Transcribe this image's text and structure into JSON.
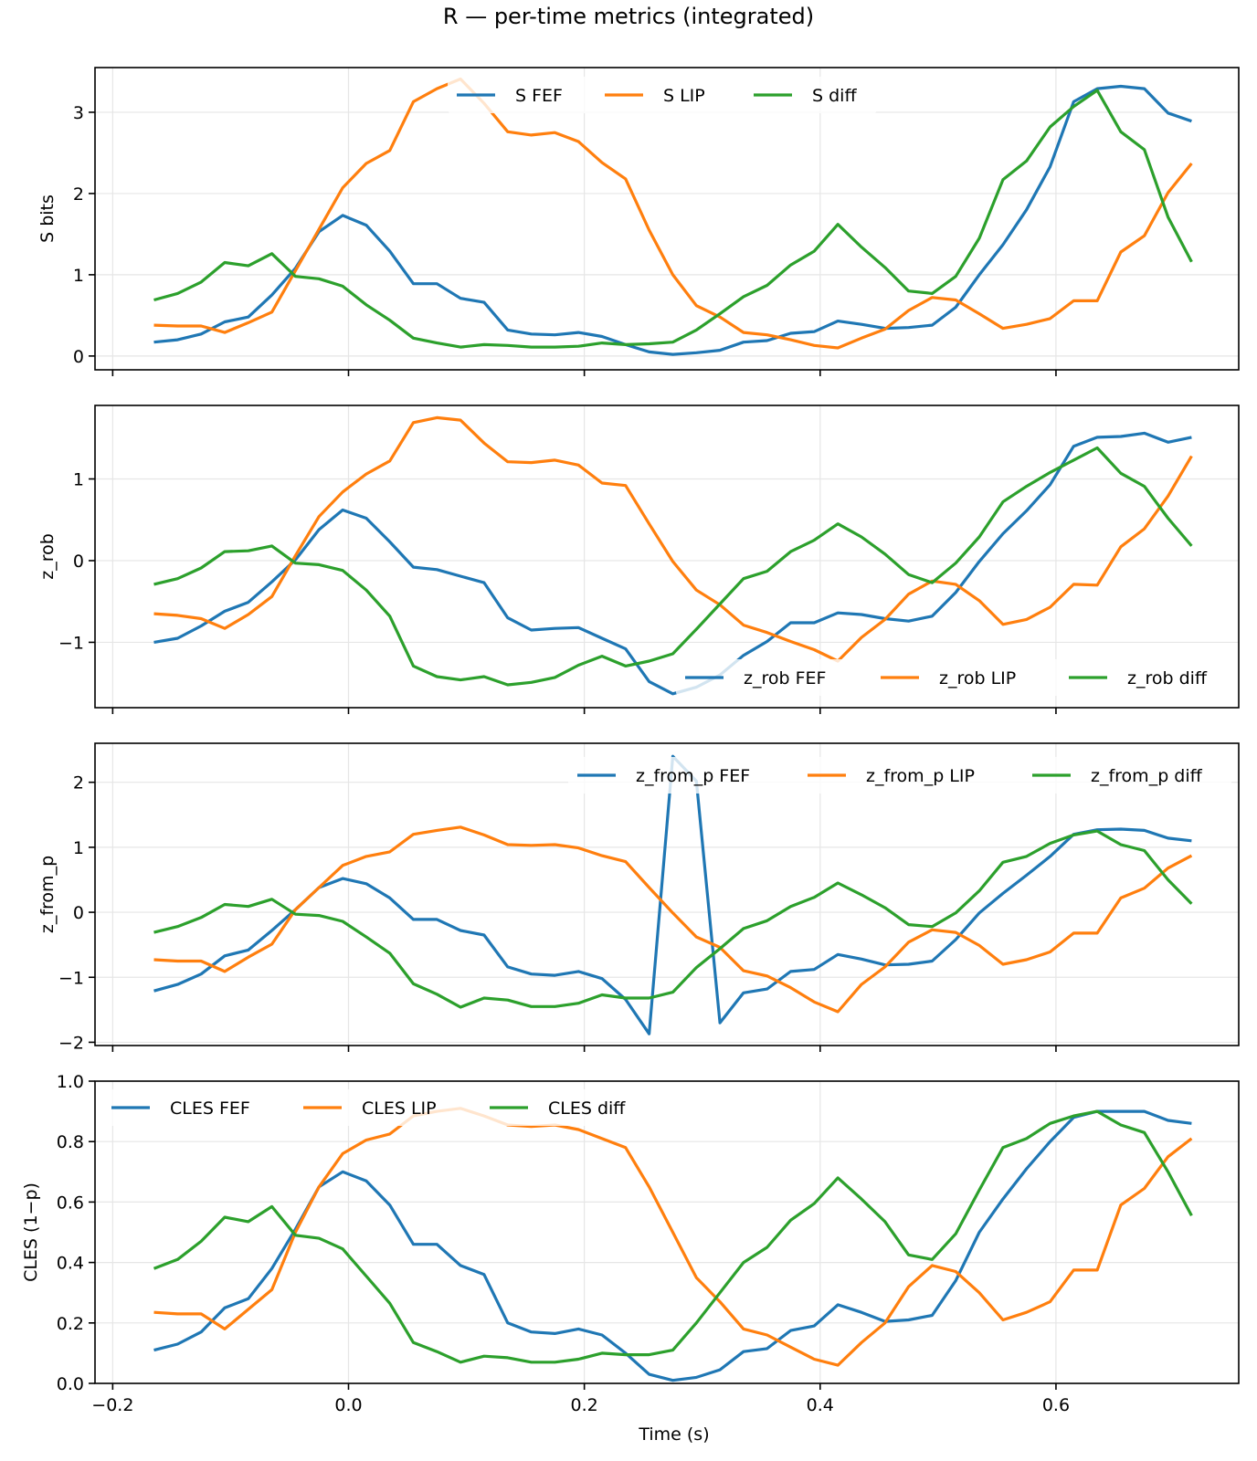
{
  "figure_title": "R — per-time metrics (integrated)",
  "colors": {
    "fef": "#1f77b4",
    "lip": "#ff7f0e",
    "diff": "#2ca02c"
  },
  "shared_x": [
    -0.165,
    -0.145,
    -0.125,
    -0.105,
    -0.085,
    -0.065,
    -0.045,
    -0.025,
    -0.005,
    0.015,
    0.035,
    0.055,
    0.075,
    0.095,
    0.115,
    0.135,
    0.155,
    0.175,
    0.195,
    0.215,
    0.235,
    0.255,
    0.275,
    0.295,
    0.315,
    0.335,
    0.355,
    0.375,
    0.395,
    0.415,
    0.435,
    0.455,
    0.475,
    0.495,
    0.515,
    0.535,
    0.555,
    0.575,
    0.595,
    0.615,
    0.635,
    0.655,
    0.675,
    0.695,
    0.715
  ],
  "chart_data": [
    {
      "type": "line",
      "ylabel": "S bits",
      "xlabel": "",
      "xlim": [
        -0.215,
        0.755
      ],
      "ylim": [
        -0.17,
        3.55
      ],
      "yticks": [
        0,
        1,
        2,
        3
      ],
      "ytick_labels": [
        "0",
        "1",
        "2",
        "3"
      ],
      "xticks": [
        -0.2,
        0.0,
        0.2,
        0.4,
        0.6
      ],
      "xtick_labels": [],
      "grid": true,
      "legend": {
        "placement": "upper center",
        "ncol": 3
      },
      "series": [
        {
          "name": "S FEF",
          "color": "#1f77b4",
          "values": [
            0.17,
            0.2,
            0.27,
            0.42,
            0.48,
            0.75,
            1.08,
            1.53,
            1.73,
            1.61,
            1.29,
            0.89,
            0.89,
            0.71,
            0.66,
            0.32,
            0.27,
            0.26,
            0.29,
            0.24,
            0.14,
            0.05,
            0.02,
            0.04,
            0.07,
            0.17,
            0.19,
            0.28,
            0.3,
            0.43,
            0.39,
            0.34,
            0.35,
            0.38,
            0.6,
            1.0,
            1.37,
            1.8,
            2.33,
            3.13,
            3.29,
            3.32,
            3.29,
            2.99,
            2.89
          ]
        },
        {
          "name": "S LIP",
          "color": "#ff7f0e",
          "values": [
            0.38,
            0.37,
            0.37,
            0.29,
            0.41,
            0.54,
            1.05,
            1.56,
            2.07,
            2.37,
            2.53,
            3.13,
            3.29,
            3.41,
            3.11,
            2.76,
            2.72,
            2.75,
            2.64,
            2.38,
            2.18,
            1.55,
            1.0,
            0.62,
            0.48,
            0.29,
            0.26,
            0.2,
            0.13,
            0.1,
            0.22,
            0.33,
            0.56,
            0.72,
            0.69,
            0.52,
            0.34,
            0.39,
            0.46,
            0.68,
            0.68,
            1.28,
            1.48,
            2.01,
            2.37
          ]
        },
        {
          "name": "S diff",
          "color": "#2ca02c",
          "values": [
            0.69,
            0.77,
            0.91,
            1.15,
            1.11,
            1.26,
            0.98,
            0.95,
            0.86,
            0.63,
            0.44,
            0.22,
            0.16,
            0.11,
            0.14,
            0.13,
            0.11,
            0.11,
            0.12,
            0.16,
            0.14,
            0.15,
            0.17,
            0.32,
            0.52,
            0.73,
            0.87,
            1.12,
            1.29,
            1.62,
            1.34,
            1.09,
            0.8,
            0.77,
            0.98,
            1.45,
            2.17,
            2.4,
            2.82,
            3.07,
            3.27,
            2.76,
            2.54,
            1.71,
            1.16
          ]
        }
      ]
    },
    {
      "type": "line",
      "ylabel": "z_rob",
      "xlabel": "",
      "xlim": [
        -0.215,
        0.755
      ],
      "ylim": [
        -1.8,
        1.9
      ],
      "yticks": [
        -1,
        0,
        1
      ],
      "ytick_labels": [
        "−1",
        "0",
        "1"
      ],
      "xticks": [
        -0.2,
        0.0,
        0.2,
        0.4,
        0.6
      ],
      "xtick_labels": [],
      "grid": true,
      "legend": {
        "placement": "lower right",
        "ncol": 3
      },
      "series": [
        {
          "name": "z_rob FEF",
          "color": "#1f77b4",
          "values": [
            -1.0,
            -0.95,
            -0.8,
            -0.62,
            -0.51,
            -0.26,
            0.01,
            0.38,
            0.62,
            0.52,
            0.23,
            -0.08,
            -0.11,
            -0.19,
            -0.27,
            -0.7,
            -0.85,
            -0.83,
            -0.82,
            -0.95,
            -1.08,
            -1.48,
            -1.63,
            -1.55,
            -1.4,
            -1.16,
            -0.99,
            -0.76,
            -0.76,
            -0.64,
            -0.66,
            -0.71,
            -0.74,
            -0.68,
            -0.39,
            -0.01,
            0.33,
            0.61,
            0.93,
            1.4,
            1.51,
            1.52,
            1.56,
            1.45,
            1.51
          ]
        },
        {
          "name": "z_rob LIP",
          "color": "#ff7f0e",
          "values": [
            -0.65,
            -0.67,
            -0.71,
            -0.83,
            -0.66,
            -0.44,
            0.06,
            0.54,
            0.84,
            1.06,
            1.22,
            1.69,
            1.75,
            1.72,
            1.44,
            1.21,
            1.2,
            1.23,
            1.17,
            0.95,
            0.92,
            0.45,
            -0.01,
            -0.36,
            -0.54,
            -0.79,
            -0.88,
            -0.99,
            -1.09,
            -1.23,
            -0.94,
            -0.72,
            -0.41,
            -0.25,
            -0.29,
            -0.49,
            -0.78,
            -0.72,
            -0.57,
            -0.29,
            -0.3,
            0.17,
            0.39,
            0.79,
            1.28
          ]
        },
        {
          "name": "z_rob diff",
          "color": "#2ca02c",
          "values": [
            -0.29,
            -0.22,
            -0.09,
            0.11,
            0.12,
            0.18,
            -0.03,
            -0.05,
            -0.12,
            -0.36,
            -0.68,
            -1.29,
            -1.42,
            -1.46,
            -1.42,
            -1.52,
            -1.49,
            -1.43,
            -1.28,
            -1.17,
            -1.29,
            -1.23,
            -1.14,
            -0.84,
            -0.53,
            -0.22,
            -0.13,
            0.11,
            0.25,
            0.45,
            0.29,
            0.08,
            -0.17,
            -0.27,
            -0.03,
            0.29,
            0.72,
            0.91,
            1.08,
            1.23,
            1.38,
            1.07,
            0.91,
            0.52,
            0.18
          ]
        }
      ]
    },
    {
      "type": "line",
      "ylabel": "z_from_p",
      "xlabel": "",
      "xlim": [
        -0.215,
        0.755
      ],
      "ylim": [
        -2.05,
        2.6
      ],
      "yticks": [
        -2,
        -1,
        0,
        1,
        2
      ],
      "ytick_labels": [
        "−2",
        "−1",
        "0",
        "1",
        "2"
      ],
      "xticks": [
        -0.2,
        0.0,
        0.2,
        0.4,
        0.6
      ],
      "xtick_labels": [],
      "grid": true,
      "legend": {
        "placement": "upper right",
        "ncol": 3
      },
      "series": [
        {
          "name": "z_from_p FEF",
          "color": "#1f77b4",
          "values": [
            -1.21,
            -1.11,
            -0.95,
            -0.67,
            -0.58,
            -0.28,
            0.04,
            0.38,
            0.52,
            0.44,
            0.22,
            -0.11,
            -0.11,
            -0.28,
            -0.35,
            -0.84,
            -0.95,
            -0.97,
            -0.91,
            -1.02,
            -1.34,
            -1.87,
            2.4,
            2.02,
            -1.7,
            -1.24,
            -1.18,
            -0.91,
            -0.88,
            -0.65,
            -0.72,
            -0.81,
            -0.8,
            -0.75,
            -0.42,
            -0.01,
            0.29,
            0.57,
            0.86,
            1.2,
            1.27,
            1.28,
            1.26,
            1.14,
            1.1
          ]
        },
        {
          "name": "z_from_p LIP",
          "color": "#ff7f0e",
          "values": [
            -0.73,
            -0.75,
            -0.75,
            -0.91,
            -0.69,
            -0.49,
            0.04,
            0.38,
            0.72,
            0.86,
            0.93,
            1.2,
            1.26,
            1.31,
            1.19,
            1.04,
            1.03,
            1.04,
            0.99,
            0.87,
            0.78,
            0.38,
            -0.01,
            -0.38,
            -0.54,
            -0.9,
            -0.98,
            -1.16,
            -1.38,
            -1.53,
            -1.11,
            -0.84,
            -0.46,
            -0.27,
            -0.31,
            -0.51,
            -0.8,
            -0.73,
            -0.61,
            -0.32,
            -0.32,
            0.22,
            0.37,
            0.68,
            0.87
          ]
        },
        {
          "name": "z_from_p diff",
          "color": "#2ca02c",
          "values": [
            -0.31,
            -0.22,
            -0.08,
            0.12,
            0.09,
            0.2,
            -0.03,
            -0.05,
            -0.14,
            -0.38,
            -0.63,
            -1.1,
            -1.26,
            -1.46,
            -1.32,
            -1.35,
            -1.45,
            -1.45,
            -1.4,
            -1.27,
            -1.32,
            -1.32,
            -1.23,
            -0.85,
            -0.56,
            -0.25,
            -0.13,
            0.09,
            0.23,
            0.45,
            0.27,
            0.07,
            -0.19,
            -0.22,
            -0.01,
            0.33,
            0.77,
            0.86,
            1.06,
            1.19,
            1.25,
            1.04,
            0.95,
            0.5,
            0.13
          ]
        }
      ]
    },
    {
      "type": "line",
      "ylabel": "CLES (1−p)",
      "xlabel": "Time (s)",
      "xlim": [
        -0.215,
        0.755
      ],
      "ylim": [
        0.0,
        1.0
      ],
      "yticks": [
        0.0,
        0.2,
        0.4,
        0.6,
        0.8,
        1.0
      ],
      "ytick_labels": [
        "0.0",
        "0.2",
        "0.4",
        "0.6",
        "0.8",
        "1.0"
      ],
      "xticks": [
        -0.2,
        0.0,
        0.2,
        0.4,
        0.6
      ],
      "xtick_labels": [
        "−0.2",
        "0.0",
        "0.2",
        "0.4",
        "0.6"
      ],
      "grid": true,
      "legend": {
        "placement": "upper left",
        "ncol": 3
      },
      "series": [
        {
          "name": "CLES FEF",
          "color": "#1f77b4",
          "values": [
            0.11,
            0.13,
            0.17,
            0.25,
            0.28,
            0.38,
            0.51,
            0.65,
            0.7,
            0.67,
            0.59,
            0.46,
            0.46,
            0.39,
            0.36,
            0.2,
            0.17,
            0.165,
            0.18,
            0.16,
            0.1,
            0.03,
            0.01,
            0.02,
            0.045,
            0.105,
            0.115,
            0.175,
            0.19,
            0.26,
            0.235,
            0.205,
            0.21,
            0.225,
            0.34,
            0.5,
            0.61,
            0.71,
            0.8,
            0.88,
            0.9,
            0.9,
            0.9,
            0.87,
            0.86
          ]
        },
        {
          "name": "CLES LIP",
          "color": "#ff7f0e",
          "values": [
            0.235,
            0.23,
            0.23,
            0.18,
            0.245,
            0.31,
            0.5,
            0.65,
            0.76,
            0.805,
            0.825,
            0.885,
            0.9,
            0.91,
            0.885,
            0.855,
            0.85,
            0.855,
            0.84,
            0.81,
            0.78,
            0.65,
            0.5,
            0.35,
            0.27,
            0.18,
            0.16,
            0.12,
            0.08,
            0.06,
            0.135,
            0.2,
            0.32,
            0.39,
            0.37,
            0.3,
            0.21,
            0.235,
            0.27,
            0.375,
            0.375,
            0.59,
            0.645,
            0.75,
            0.81
          ]
        },
        {
          "name": "CLES diff",
          "color": "#2ca02c",
          "values": [
            0.38,
            0.41,
            0.47,
            0.55,
            0.535,
            0.585,
            0.49,
            0.48,
            0.445,
            0.355,
            0.265,
            0.135,
            0.105,
            0.07,
            0.09,
            0.085,
            0.07,
            0.07,
            0.08,
            0.1,
            0.095,
            0.095,
            0.11,
            0.2,
            0.3,
            0.4,
            0.45,
            0.54,
            0.595,
            0.68,
            0.61,
            0.535,
            0.425,
            0.41,
            0.495,
            0.64,
            0.78,
            0.81,
            0.86,
            0.885,
            0.9,
            0.855,
            0.83,
            0.7,
            0.555
          ]
        }
      ]
    }
  ]
}
